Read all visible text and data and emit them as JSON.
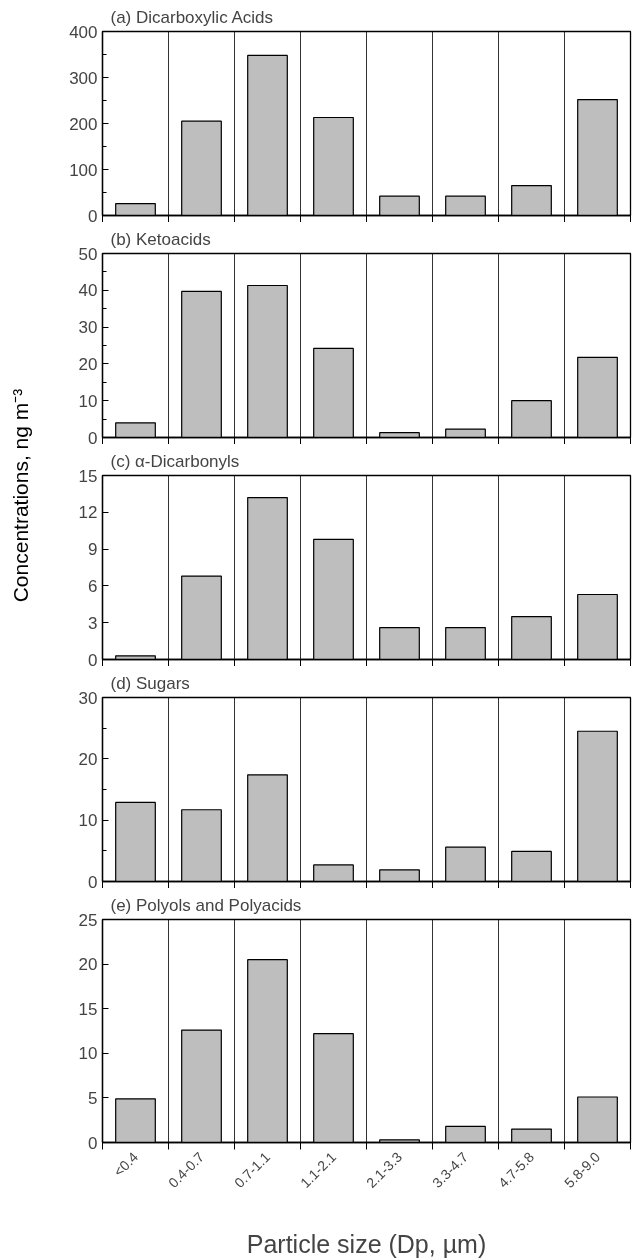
{
  "chart_data": [
    {
      "type": "bar",
      "title": "(a) Dicarboxylic Acids",
      "categories": [
        null,
        null,
        null,
        null,
        null,
        null,
        null,
        null
      ],
      "values": [
        26,
        205,
        348,
        213,
        42,
        42,
        65,
        252
      ],
      "color": "#bebebe",
      "ylim": [
        0,
        400
      ],
      "yticks": [
        0,
        {
          "value": 50,
          "label": null
        },
        100,
        {
          "value": 150,
          "label": null
        },
        200,
        {
          "value": 250,
          "label": null
        },
        300,
        {
          "value": 350,
          "label": null
        },
        400
      ],
      "grid": "x",
      "tick_labels": "y"
    },
    {
      "type": "bar",
      "title": "(b) Ketoacids",
      "categories": [
        null,
        null,
        null,
        null,
        null,
        null,
        null,
        null
      ],
      "values": [
        4,
        39.7,
        41.3,
        24.2,
        1.3,
        2.3,
        10,
        21.8
      ],
      "color": "#bebebe",
      "ylim": [
        0,
        50
      ],
      "yticks": [
        0,
        {
          "value": 5,
          "label": null
        },
        10,
        {
          "value": 15,
          "label": null
        },
        20,
        {
          "value": 25,
          "label": null
        },
        30,
        {
          "value": 35,
          "label": null
        },
        40,
        {
          "value": 45,
          "label": null
        },
        50
      ],
      "grid": "x",
      "tick_labels": "y"
    },
    {
      "type": "bar",
      "title": "(c) α-Dicarbonyls",
      "ylabel": "Concentrations, ng m⁻³",
      "categories": [
        null,
        null,
        null,
        null,
        null,
        null,
        null,
        null
      ],
      "values": [
        0.3,
        6.8,
        13.2,
        9.8,
        2.6,
        2.6,
        3.5,
        5.3
      ],
      "color": "#bebebe",
      "ylim": [
        0,
        15
      ],
      "yticks": [
        0,
        3,
        6,
        9,
        12,
        15
      ],
      "grid": "x",
      "tick_labels": "y"
    },
    {
      "type": "bar",
      "title": "(d) Sugars",
      "categories": [
        null,
        null,
        null,
        null,
        null,
        null,
        null,
        null
      ],
      "values": [
        12.9,
        11.7,
        17.4,
        2.7,
        1.9,
        5.6,
        4.9,
        24.5
      ],
      "color": "#bebebe",
      "ylim": [
        0,
        30
      ],
      "yticks": [
        0,
        {
          "value": 5,
          "label": null
        },
        10,
        {
          "value": 15,
          "label": null
        },
        20,
        {
          "value": 25,
          "label": null
        },
        30
      ],
      "grid": "x",
      "tick_labels": "y"
    },
    {
      "type": "bar",
      "title": "(e) Polyols and Polyacids",
      "xlabel": "Particle size (Dp, µm)",
      "categories": [
        "<0.4",
        "0.4-0.7",
        "0.7-1.1",
        "1.1-2.1",
        "2.1-3.3",
        "3.3-4.7",
        "4.7-5.8",
        "5.8-9.0"
      ],
      "values": [
        4.9,
        12.6,
        20.5,
        12.2,
        0.3,
        1.8,
        1.5,
        5.1
      ],
      "color": "#bebebe",
      "ylim": [
        0,
        25
      ],
      "yticks": [
        0,
        5,
        10,
        15,
        20,
        25
      ],
      "grid": "x"
    }
  ]
}
